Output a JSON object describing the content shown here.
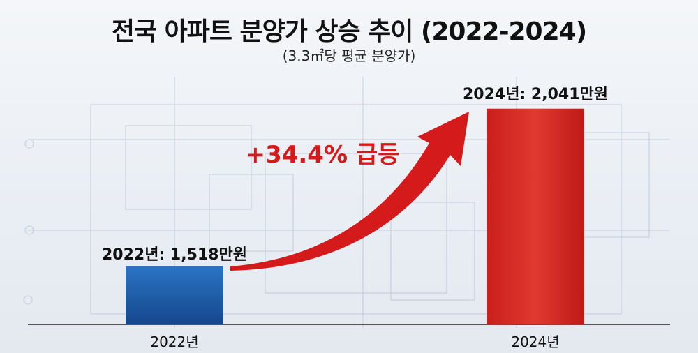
{
  "chart_data": {
    "type": "bar",
    "title": "전국 아파트 분양가 상승 추이 (2022-2024)",
    "subtitle": "(3.3㎡당 평균 분양가)",
    "categories": [
      "2022년",
      "2024년"
    ],
    "values": [
      1518,
      2041
    ],
    "unit": "만원",
    "data_labels": [
      "2022년: 1,518만원",
      "2024년: 2,041만원"
    ],
    "annotation": "+34.4% 급등",
    "ylim": [
      1325,
      2170
    ],
    "grid": false,
    "colors": {
      "2022년": "#1d5fae",
      "2024년": "#d42a24",
      "arrow": "#d41a1a",
      "annotation": "#d41a1a"
    }
  }
}
